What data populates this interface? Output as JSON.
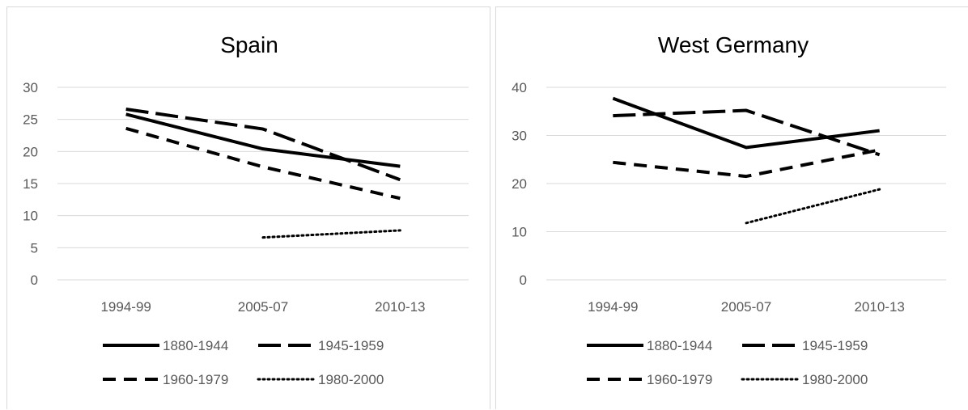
{
  "chart_data": [
    {
      "type": "line",
      "title": "Spain",
      "categories": [
        "1994-99",
        "2005-07",
        "2010-13"
      ],
      "ylim": [
        0,
        30
      ],
      "yticks": [
        0,
        5,
        10,
        15,
        20,
        25,
        30
      ],
      "grid": true,
      "legend": "bottom",
      "series": [
        {
          "name": "1880-1944",
          "values": [
            25.8,
            20.4,
            17.7
          ],
          "dash": "solid"
        },
        {
          "name": "1945-1959",
          "values": [
            26.6,
            23.5,
            15.6
          ],
          "dash": "long-dash"
        },
        {
          "name": "1960-1979",
          "values": [
            23.6,
            17.6,
            12.7
          ],
          "dash": "dash"
        },
        {
          "name": "1980-2000",
          "values": [
            null,
            6.6,
            7.7
          ],
          "dash": "dot"
        }
      ]
    },
    {
      "type": "line",
      "title": "West Germany",
      "categories": [
        "1994-99",
        "2005-07",
        "2010-13"
      ],
      "ylim": [
        0,
        40
      ],
      "yticks": [
        0,
        10,
        20,
        30,
        40
      ],
      "grid": true,
      "legend": "bottom",
      "series": [
        {
          "name": "1880-1944",
          "values": [
            37.7,
            27.5,
            31.0
          ],
          "dash": "solid"
        },
        {
          "name": "1945-1959",
          "values": [
            34.1,
            35.2,
            26.0
          ],
          "dash": "long-dash"
        },
        {
          "name": "1960-1979",
          "values": [
            24.4,
            21.5,
            27.0
          ],
          "dash": "dash"
        },
        {
          "name": "1980-2000",
          "values": [
            null,
            11.8,
            18.8
          ],
          "dash": "dot"
        }
      ]
    }
  ],
  "colors": {
    "line": "#000000",
    "grid": "#d9d9d9",
    "text": "#595959",
    "border": "#d9d9d9"
  }
}
